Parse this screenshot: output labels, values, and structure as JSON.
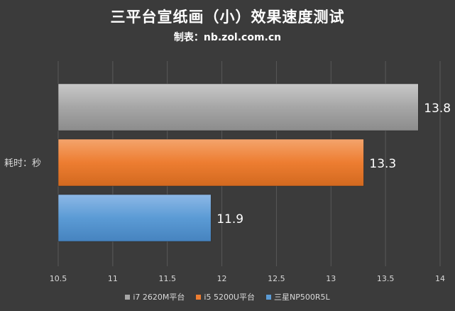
{
  "chart_data": {
    "type": "bar",
    "orientation": "horizontal",
    "title": "三平台宣纸画（小）效果速度测试",
    "subtitle": "制表：nb.zol.com.cn",
    "ylabel": "耗时：秒",
    "xlabel": "",
    "xlim": [
      10.5,
      14
    ],
    "xticks": [
      "10.5",
      "11",
      "11.5",
      "12",
      "12.5",
      "13",
      "13.5",
      "14"
    ],
    "grid": true,
    "legend_position": "bottom",
    "series": [
      {
        "name": "i7 2620M平台",
        "value": 13.8,
        "label": "13.8",
        "color": "#a6a6a6"
      },
      {
        "name": "i5 5200U平台",
        "value": 13.3,
        "label": "13.3",
        "color": "#ed7d31"
      },
      {
        "name": "三星NP500R5L",
        "value": 11.9,
        "label": "11.9",
        "color": "#5b9bd5"
      }
    ]
  }
}
